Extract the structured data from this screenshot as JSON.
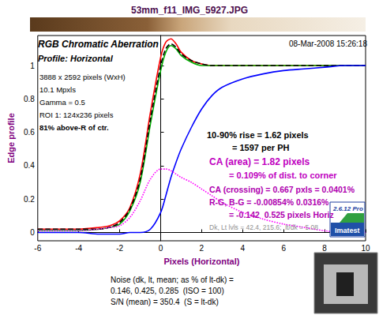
{
  "chart_data": {
    "type": "line",
    "title": "53mm_f11_IMG_5927.JPG",
    "xlabel": "Pixels (Horizontal)",
    "ylabel": "Edge profile",
    "x": [
      -6,
      -5,
      -4,
      -3,
      -2.5,
      -2,
      -1.5,
      -1,
      -0.5,
      0,
      0.25,
      0.5,
      0.75,
      1,
      1.5,
      2,
      2.5,
      3,
      4,
      5,
      6,
      7,
      8,
      9,
      10
    ],
    "series": [
      {
        "color": "#ff0000",
        "line_style": "solid",
        "values": [
          0.02,
          0.02,
          0.02,
          0.03,
          0.04,
          0.07,
          0.15,
          0.35,
          0.72,
          1.05,
          1.14,
          1.16,
          1.13,
          1.08,
          1.03,
          1.01,
          1.0,
          1.0,
          1.0,
          1.0,
          1.0,
          1.0,
          1.0,
          1.0,
          1.0
        ]
      },
      {
        "color": "#00b000",
        "line_style": "solid",
        "values": [
          0.01,
          0.01,
          0.01,
          0.02,
          0.03,
          0.05,
          0.13,
          0.3,
          0.65,
          0.97,
          1.08,
          1.12,
          1.1,
          1.06,
          1.02,
          1.0,
          1.0,
          1.0,
          1.0,
          1.0,
          1.0,
          1.0,
          1.0,
          1.0,
          1.0
        ]
      },
      {
        "color": "#000000",
        "line_style": "dashed",
        "values": [
          0.02,
          0.02,
          0.02,
          0.02,
          0.03,
          0.06,
          0.14,
          0.32,
          0.68,
          1.0,
          1.1,
          1.13,
          1.11,
          1.07,
          1.03,
          1.01,
          1.0,
          1.0,
          1.0,
          1.0,
          1.0,
          1.0,
          1.0,
          1.0,
          1.0
        ]
      },
      {
        "color": "#0000ff",
        "line_style": "solid",
        "values": [
          0.0,
          0.0,
          0.0,
          -0.01,
          -0.01,
          -0.01,
          0.0,
          0.0,
          0.02,
          0.12,
          0.22,
          0.33,
          0.42,
          0.5,
          0.63,
          0.74,
          0.82,
          0.87,
          0.92,
          0.95,
          0.97,
          0.98,
          0.99,
          1.0,
          1.0
        ]
      },
      {
        "color": "#ff00ff",
        "line_style": "dotted",
        "values": [
          0.01,
          0.01,
          0.01,
          0.02,
          0.03,
          0.04,
          0.09,
          0.19,
          0.32,
          0.38,
          0.38,
          0.37,
          0.35,
          0.33,
          0.3,
          0.26,
          0.22,
          0.18,
          0.12,
          0.08,
          0.05,
          0.03,
          0.01,
          0.0,
          0.0
        ]
      }
    ],
    "xlim": [
      -6,
      10
    ],
    "xticks": [
      -6,
      -4,
      -2,
      0,
      2,
      4,
      6,
      8,
      10
    ],
    "ylim": [
      -0.05,
      1.18
    ],
    "yticks": [
      0,
      0.2,
      0.4,
      0.6,
      0.8,
      1
    ],
    "grid": false,
    "marker": "none",
    "annotations": [
      "RGB Chromatic Aberration",
      "Profile: Horizontal",
      "08-Mar-2008 15:26:18",
      "3888 x 2592 pixels (WxH)",
      "10.1 Mpxls",
      "Gamma = 0.5",
      "ROI 1: 124x236 pixels",
      "81% above-R of ctr.",
      "10-90% rise = 1.62 pixels",
      "= 1597 per PH",
      "CA (area) = 1.82 pixels",
      "= 0.109% of dist. to corner",
      "CA (crossing) = 0.667 pxls = 0.0401%",
      "R-G, B-G = -0.00854% 0.0316%",
      "= -0.142  0.525 pixels Horiz",
      "Dk, Lt lvls = 42.4, 215.6;  lt/dk = 5.08",
      "2.6.12 Pro",
      "Imatest",
      "Noise (dk, lt, mean; as % of lt-dk) =",
      "0.146, 0.425, 0.285  (ISO = 100)",
      "S/N (mean) = 350.4  (S = lt-dk)"
    ]
  }
}
